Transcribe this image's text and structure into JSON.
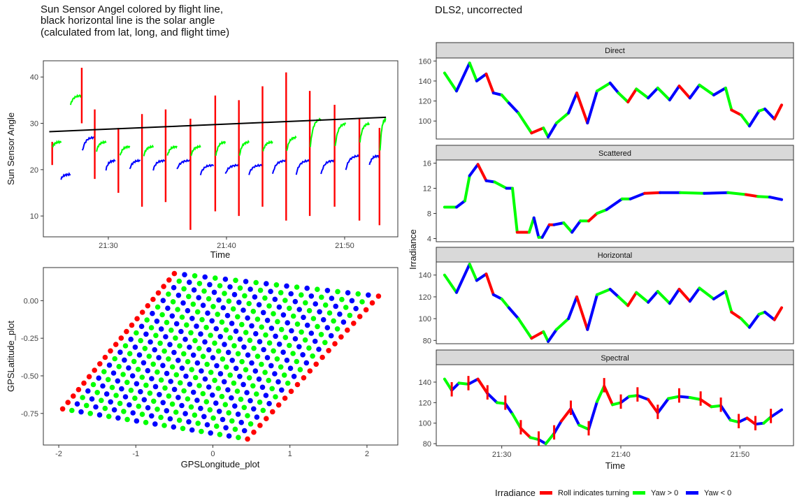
{
  "chart_data": [
    {
      "type": "line",
      "title_lines": [
        "Sun Sensor Angel colored by flight line,",
        "black horizontal line is the solar angle",
        "(calculated from lat, long, and flight time)"
      ],
      "xlabel": "Time",
      "ylabel": "Sun Sensor Angle",
      "x_ticks": [
        "21:30",
        "21:40",
        "21:50"
      ],
      "x_tick_minutes": [
        30,
        40,
        50
      ],
      "xlim_minutes": [
        24.5,
        54.5
      ],
      "y_ticks": [
        10,
        20,
        30,
        40
      ],
      "ylim": [
        5.5,
        43.5
      ],
      "solar_angle_line": {
        "x": [
          25,
          53.5
        ],
        "y": [
          28.2,
          31.3
        ],
        "color": "#000000"
      },
      "segments": [
        {
          "c": "red",
          "x": [
            25.2,
            25.3
          ],
          "y": [
            21,
            26
          ]
        },
        {
          "c": "green",
          "x": [
            25.3,
            26.0
          ],
          "y": [
            25,
            26
          ]
        },
        {
          "c": "blue",
          "x": [
            26.0,
            26.8
          ],
          "y": [
            18,
            19
          ]
        },
        {
          "c": "green",
          "x": [
            26.8,
            27.7
          ],
          "y": [
            34,
            36
          ]
        },
        {
          "c": "red",
          "x": [
            27.7,
            27.8
          ],
          "y": [
            30,
            42
          ]
        },
        {
          "c": "blue",
          "x": [
            27.8,
            28.8
          ],
          "y": [
            24,
            27
          ]
        },
        {
          "c": "red",
          "x": [
            28.8,
            28.9
          ],
          "y": [
            18,
            33
          ]
        },
        {
          "c": "green",
          "x": [
            29.0,
            29.8
          ],
          "y": [
            24,
            26
          ]
        },
        {
          "c": "blue",
          "x": [
            29.8,
            30.6
          ],
          "y": [
            20,
            22
          ]
        },
        {
          "c": "red",
          "x": [
            30.8,
            30.9
          ],
          "y": [
            15,
            29
          ]
        },
        {
          "c": "green",
          "x": [
            31.0,
            31.8
          ],
          "y": [
            23,
            25
          ]
        },
        {
          "c": "blue",
          "x": [
            31.8,
            32.7
          ],
          "y": [
            20,
            22
          ]
        },
        {
          "c": "red",
          "x": [
            32.8,
            32.9
          ],
          "y": [
            12,
            32
          ]
        },
        {
          "c": "green",
          "x": [
            33.0,
            33.8
          ],
          "y": [
            23,
            25
          ]
        },
        {
          "c": "blue",
          "x": [
            33.8,
            34.8
          ],
          "y": [
            20,
            22
          ]
        },
        {
          "c": "red",
          "x": [
            34.8,
            34.9
          ],
          "y": [
            13,
            33
          ]
        },
        {
          "c": "green",
          "x": [
            35.0,
            35.8
          ],
          "y": [
            23,
            25
          ]
        },
        {
          "c": "blue",
          "x": [
            35.8,
            36.9
          ],
          "y": [
            20,
            22
          ]
        },
        {
          "c": "red",
          "x": [
            36.9,
            37.0
          ],
          "y": [
            7,
            31
          ]
        },
        {
          "c": "green",
          "x": [
            37.0,
            37.8
          ],
          "y": [
            23,
            25
          ]
        },
        {
          "c": "blue",
          "x": [
            37.8,
            38.9
          ],
          "y": [
            19,
            21
          ]
        },
        {
          "c": "red",
          "x": [
            39.0,
            39.1
          ],
          "y": [
            11,
            36
          ]
        },
        {
          "c": "green",
          "x": [
            39.1,
            39.9
          ],
          "y": [
            23,
            26
          ]
        },
        {
          "c": "blue",
          "x": [
            39.9,
            41.0
          ],
          "y": [
            19,
            21
          ]
        },
        {
          "c": "red",
          "x": [
            41.0,
            41.1
          ],
          "y": [
            10,
            35
          ]
        },
        {
          "c": "green",
          "x": [
            41.1,
            41.9
          ],
          "y": [
            23,
            26
          ]
        },
        {
          "c": "blue",
          "x": [
            41.9,
            43.0
          ],
          "y": [
            19,
            21
          ]
        },
        {
          "c": "red",
          "x": [
            43.0,
            43.1
          ],
          "y": [
            12,
            38
          ]
        },
        {
          "c": "green",
          "x": [
            43.1,
            43.9
          ],
          "y": [
            24,
            26
          ]
        },
        {
          "c": "blue",
          "x": [
            43.9,
            45.0
          ],
          "y": [
            19,
            22
          ]
        },
        {
          "c": "red",
          "x": [
            45.0,
            45.1
          ],
          "y": [
            9,
            41
          ]
        },
        {
          "c": "green",
          "x": [
            45.1,
            45.9
          ],
          "y": [
            24,
            27
          ]
        },
        {
          "c": "blue",
          "x": [
            45.9,
            47.0
          ],
          "y": [
            19,
            22
          ]
        },
        {
          "c": "red",
          "x": [
            47.0,
            47.1
          ],
          "y": [
            10,
            37
          ]
        },
        {
          "c": "green",
          "x": [
            47.1,
            48.0
          ],
          "y": [
            25,
            31
          ]
        },
        {
          "c": "blue",
          "x": [
            48.0,
            49.1
          ],
          "y": [
            19,
            22
          ]
        },
        {
          "c": "red",
          "x": [
            49.1,
            49.2
          ],
          "y": [
            12,
            34
          ]
        },
        {
          "c": "green",
          "x": [
            49.2,
            50.1
          ],
          "y": [
            25,
            30
          ]
        },
        {
          "c": "blue",
          "x": [
            50.1,
            51.2
          ],
          "y": [
            20,
            23
          ]
        },
        {
          "c": "red",
          "x": [
            51.2,
            51.3
          ],
          "y": [
            9,
            31
          ]
        },
        {
          "c": "green",
          "x": [
            51.3,
            52.1
          ],
          "y": [
            26,
            30
          ]
        },
        {
          "c": "blue",
          "x": [
            52.1,
            52.9
          ],
          "y": [
            21,
            23
          ]
        },
        {
          "c": "red",
          "x": [
            52.9,
            53.0
          ],
          "y": [
            8,
            29
          ]
        },
        {
          "c": "green",
          "x": [
            53.0,
            53.5
          ],
          "y": [
            24,
            31
          ]
        }
      ]
    },
    {
      "type": "scatter",
      "xlabel": "GPSLongitude_plot",
      "ylabel": "GPSLatitude_plot",
      "x_ticks": [
        -2,
        -1,
        0,
        1,
        2
      ],
      "y_ticks": [
        "0.00",
        "-0.25",
        "-0.50",
        "-0.75"
      ],
      "y_tick_values": [
        0,
        -0.25,
        -0.5,
        -0.75
      ],
      "xlim": [
        -2.2,
        2.4
      ],
      "ylim": [
        -0.96,
        0.22
      ],
      "grid": {
        "corners": [
          [
            -1.95,
            -0.72
          ],
          [
            -0.5,
            0.18
          ],
          [
            2.15,
            0.03
          ],
          [
            0.45,
            -0.92
          ]
        ],
        "rows": 22,
        "cols": 21
      }
    },
    {
      "type": "line",
      "title": "DLS2, uncorrected",
      "xlabel": "Time",
      "ylabel": "Irradiance",
      "x_ticks": [
        "21:30",
        "21:40",
        "21:50"
      ],
      "x_tick_minutes": [
        30,
        40,
        50
      ],
      "xlim_minutes": [
        24.5,
        54.5
      ],
      "legend": {
        "title": "Irradiance",
        "placement": "bottom",
        "entries": [
          {
            "label": "Roll indicates turning",
            "color": "#ff0000"
          },
          {
            "label": "Yaw > 0",
            "color": "#00ff00"
          },
          {
            "label": "Yaw < 0",
            "color": "#0000ff"
          }
        ]
      },
      "facets": [
        {
          "name": "Direct",
          "y_ticks": [
            100,
            120,
            140,
            160
          ],
          "ylim": [
            82,
            163
          ],
          "x": [
            25.2,
            26.2,
            27.3,
            27.9,
            28.7,
            29.3,
            30.0,
            30.6,
            31.4,
            32.5,
            33.5,
            33.9,
            34.6,
            35.6,
            36.3,
            37.2,
            38.0,
            39.1,
            39.8,
            40.6,
            41.3,
            42.3,
            43.1,
            44.1,
            44.9,
            45.8,
            46.6,
            47.8,
            48.8,
            49.3,
            50.1,
            50.8,
            51.6,
            52.1,
            52.9,
            53.5
          ],
          "y": [
            148,
            130,
            158,
            140,
            147,
            128,
            126,
            118,
            108,
            88,
            93,
            84,
            98,
            108,
            128,
            98,
            130,
            138,
            128,
            119,
            132,
            123,
            133,
            121,
            135,
            123,
            136,
            126,
            133,
            111,
            106,
            95,
            110,
            112,
            102,
            116
          ]
        },
        {
          "name": "Scattered",
          "y_ticks": [
            4,
            8,
            12,
            16
          ],
          "ylim": [
            3.5,
            16.5
          ],
          "x": [
            25.2,
            26.2,
            26.9,
            27.3,
            28.0,
            28.7,
            29.4,
            30.4,
            30.9,
            31.3,
            32.3,
            32.7,
            33.1,
            33.4,
            34.0,
            34.4,
            35.2,
            35.9,
            36.6,
            37.3,
            38.0,
            38.8,
            40.1,
            40.8,
            42.0,
            43.3,
            45.0,
            47.0,
            49.0,
            50.5,
            51.5,
            52.5,
            53.5
          ],
          "y": [
            9,
            9,
            10,
            14,
            15.8,
            13.2,
            13,
            12,
            12,
            5,
            5,
            7.3,
            4.2,
            4.2,
            6.2,
            6.2,
            6.5,
            5,
            6.8,
            6.8,
            8,
            8.6,
            10.3,
            10.3,
            11.2,
            11.3,
            11.3,
            11.2,
            11.3,
            11,
            10.7,
            10.6,
            10.2
          ]
        },
        {
          "name": "Horizontal",
          "y_ticks": [
            80,
            100,
            120,
            140
          ],
          "ylim": [
            77,
            152
          ],
          "x": [
            25.2,
            26.2,
            27.3,
            27.9,
            28.7,
            29.3,
            30.0,
            30.6,
            31.4,
            32.5,
            33.5,
            33.9,
            34.6,
            35.6,
            36.3,
            37.2,
            38.0,
            39.1,
            39.8,
            40.6,
            41.3,
            42.3,
            43.1,
            44.1,
            44.9,
            45.8,
            46.6,
            47.8,
            48.8,
            49.3,
            50.1,
            50.8,
            51.6,
            52.1,
            52.9,
            53.5
          ],
          "y": [
            140,
            124,
            150,
            135,
            141,
            122,
            118,
            110,
            100,
            82,
            88,
            79,
            90,
            100,
            120,
            90,
            122,
            127,
            120,
            112,
            124,
            115,
            125,
            114,
            127,
            116,
            128,
            118,
            125,
            106,
            100,
            92,
            104,
            106,
            99,
            110
          ]
        },
        {
          "name": "Spectral",
          "y_ticks": [
            80,
            100,
            120,
            140
          ],
          "ylim": [
            78,
            157
          ],
          "x": [
            25.2,
            25.8,
            26.4,
            27.2,
            28.0,
            28.8,
            29.6,
            30.3,
            30.9,
            31.6,
            32.4,
            33.1,
            33.7,
            34.4,
            35.0,
            35.8,
            36.5,
            37.3,
            38.0,
            38.6,
            39.3,
            40.0,
            40.7,
            41.4,
            42.3,
            43.1,
            44.0,
            44.9,
            45.8,
            46.7,
            47.6,
            48.4,
            49.2,
            49.9,
            50.6,
            51.3,
            52.0,
            52.6,
            53.5
          ],
          "y": [
            143,
            132,
            139,
            138,
            143,
            129,
            120,
            119,
            109,
            95,
            86,
            84,
            80,
            90,
            102,
            114,
            98,
            94,
            121,
            136,
            118,
            120,
            126,
            127,
            123,
            110,
            124,
            126,
            125,
            123,
            116,
            117,
            103,
            101,
            105,
            99,
            100,
            106,
            113
          ]
        }
      ]
    }
  ]
}
